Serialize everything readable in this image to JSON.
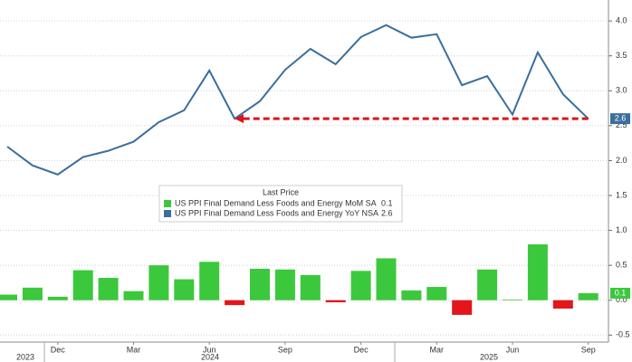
{
  "chart_data": {
    "type": "bar_line",
    "categories": [
      null,
      null,
      "Dec",
      null,
      null,
      "Mar",
      null,
      null,
      "Jun",
      null,
      null,
      "Sep",
      null,
      null,
      "Dec",
      null,
      null,
      "Mar",
      null,
      null,
      "Jun",
      null,
      null,
      "Sep"
    ],
    "x_year_labels": [
      "2023",
      "2024",
      "2025"
    ],
    "legend_title": "Last Price",
    "series": [
      {
        "name": "US PPI Final Demand Less Foods and Energy MoM SA",
        "type": "bar",
        "color": "#3cc83c",
        "negative_color": "#e3161b",
        "values": [
          0.08,
          0.18,
          0.05,
          0.43,
          0.32,
          0.13,
          0.5,
          0.3,
          0.55,
          -0.07,
          0.45,
          0.44,
          0.36,
          -0.03,
          0.42,
          0.6,
          0.14,
          0.19,
          -0.21,
          0.44,
          0.01,
          0.8,
          -0.12,
          0.1
        ]
      },
      {
        "name": "US PPI Final Demand Less Foods and Energy YoY NSA",
        "type": "line",
        "color": "#3a6e9e",
        "values": [
          2.2,
          1.93,
          1.8,
          2.05,
          2.14,
          2.27,
          2.55,
          2.72,
          3.29,
          2.6,
          2.85,
          3.3,
          3.6,
          3.38,
          3.77,
          3.94,
          3.76,
          3.81,
          3.08,
          3.21,
          2.66,
          3.55,
          2.95,
          2.6
        ]
      }
    ],
    "ylim": [
      -0.6,
      4.3
    ],
    "yticks": [
      {
        "value": 4,
        "label": "4.0"
      },
      3.5,
      {
        "value": 3,
        "label": "3.0"
      },
      2.5,
      {
        "value": 2,
        "label": "2.0"
      },
      1.5,
      {
        "value": 1,
        "label": "1.0"
      },
      0.5,
      {
        "value": 0,
        "label": "0.0"
      },
      -0.5
    ],
    "grid": true
  }
}
